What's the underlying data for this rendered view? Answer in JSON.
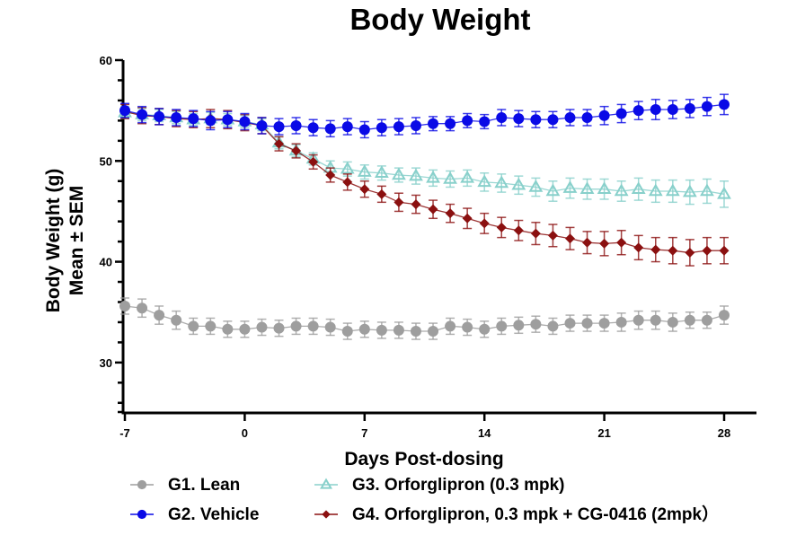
{
  "chart_data": {
    "type": "line",
    "title": "Body Weight",
    "xlabel": "Days Post-dosing",
    "ylabel": [
      "Body Weight  (g)",
      "Mean ± SEM"
    ],
    "xlim": [
      -7,
      30
    ],
    "ylim": [
      25,
      60
    ],
    "xticks": [
      -7,
      0,
      7,
      14,
      21,
      28
    ],
    "xtick_labels": [
      "-7",
      "0",
      "7",
      "14",
      "21",
      "28"
    ],
    "yticks": [
      30,
      40,
      50,
      60
    ],
    "ytick_labels": [
      "30",
      "40",
      "50",
      "60"
    ],
    "y_minor_step": 2,
    "grid": false,
    "legend_position": "bottom",
    "x": [
      -7,
      -6,
      -5,
      -4,
      -3,
      -2,
      -1,
      0,
      1,
      2,
      3,
      4,
      5,
      6,
      7,
      8,
      9,
      10,
      11,
      12,
      13,
      14,
      15,
      16,
      17,
      18,
      19,
      20,
      21,
      22,
      23,
      24,
      25,
      26,
      27,
      28
    ],
    "series": [
      {
        "name": "G1. Lean",
        "color": "#9e9e9e",
        "marker": "circle",
        "values": [
          35.6,
          35.4,
          34.7,
          34.2,
          33.6,
          33.6,
          33.3,
          33.3,
          33.5,
          33.4,
          33.6,
          33.6,
          33.5,
          33.1,
          33.3,
          33.2,
          33.2,
          33.1,
          33.1,
          33.6,
          33.5,
          33.3,
          33.6,
          33.7,
          33.8,
          33.6,
          33.9,
          33.9,
          33.9,
          34.0,
          34.2,
          34.2,
          34.0,
          34.2,
          34.2,
          34.7
        ],
        "sem": [
          0.8,
          0.9,
          0.9,
          0.9,
          0.8,
          0.8,
          0.8,
          0.8,
          0.8,
          0.8,
          0.8,
          0.8,
          0.8,
          0.8,
          0.8,
          0.8,
          0.8,
          0.8,
          0.8,
          0.8,
          0.8,
          0.8,
          0.8,
          0.8,
          0.8,
          0.8,
          0.8,
          0.8,
          0.8,
          0.9,
          0.9,
          0.9,
          0.9,
          0.8,
          0.8,
          0.9
        ]
      },
      {
        "name": "G2. Vehicle",
        "color": "#0a0ae6",
        "marker": "circle",
        "values": [
          55.0,
          54.6,
          54.4,
          54.3,
          54.2,
          54.0,
          54.1,
          53.9,
          53.5,
          53.4,
          53.5,
          53.3,
          53.2,
          53.4,
          53.1,
          53.3,
          53.4,
          53.5,
          53.7,
          53.7,
          54.0,
          53.9,
          54.3,
          54.2,
          54.1,
          54.1,
          54.3,
          54.3,
          54.5,
          54.7,
          55.0,
          55.1,
          55.1,
          55.2,
          55.4,
          55.6
        ],
        "sem": [
          0.7,
          0.8,
          0.8,
          0.8,
          0.8,
          0.9,
          0.8,
          0.8,
          0.8,
          0.8,
          0.8,
          0.8,
          0.8,
          0.8,
          0.8,
          0.8,
          0.8,
          0.8,
          0.7,
          0.7,
          0.7,
          0.7,
          0.8,
          0.8,
          0.8,
          0.8,
          0.8,
          0.8,
          0.9,
          0.9,
          0.9,
          1.0,
          0.9,
          0.9,
          0.9,
          1.0
        ]
      },
      {
        "name": "G3. Orforglipron (0.3 mpk)",
        "color": "#88d0cb",
        "marker": "triangle-open",
        "values": [
          54.8,
          54.6,
          54.5,
          54.3,
          54.1,
          54.2,
          54.1,
          53.9,
          53.6,
          51.8,
          51.0,
          50.2,
          49.3,
          49.2,
          48.9,
          48.8,
          48.6,
          48.5,
          48.3,
          48.2,
          48.3,
          47.9,
          47.8,
          47.6,
          47.4,
          47.0,
          47.3,
          47.2,
          47.2,
          47.0,
          47.2,
          47.0,
          47.0,
          46.9,
          47.0,
          46.7
        ],
        "sem": [
          0.6,
          0.6,
          0.6,
          0.6,
          0.6,
          0.6,
          0.6,
          0.6,
          0.6,
          0.6,
          0.6,
          0.6,
          0.7,
          0.7,
          0.7,
          0.7,
          0.7,
          0.8,
          0.8,
          0.8,
          0.8,
          0.9,
          0.9,
          0.9,
          0.9,
          1.0,
          1.0,
          1.0,
          1.0,
          1.0,
          1.1,
          1.1,
          1.1,
          1.2,
          1.2,
          1.3
        ]
      },
      {
        "name": "G4. Orforglipron, 0.3 mpk + CG-0416 (2mpk)",
        "color": "#8b1010",
        "marker": "diamond",
        "values": [
          54.9,
          54.5,
          54.4,
          54.2,
          54.1,
          54.2,
          54.1,
          53.8,
          53.5,
          51.7,
          51.0,
          49.9,
          48.6,
          47.9,
          47.2,
          46.7,
          45.9,
          45.7,
          45.2,
          44.8,
          44.3,
          43.8,
          43.4,
          43.1,
          42.8,
          42.6,
          42.3,
          41.9,
          41.8,
          41.9,
          41.4,
          41.2,
          41.1,
          40.9,
          41.1,
          41.1
        ],
        "sem": [
          0.7,
          0.8,
          0.8,
          0.8,
          0.8,
          0.9,
          0.9,
          0.8,
          0.8,
          0.7,
          0.7,
          0.7,
          0.7,
          0.8,
          0.8,
          0.8,
          0.9,
          0.9,
          0.9,
          0.9,
          1.0,
          1.0,
          1.0,
          1.0,
          1.1,
          1.1,
          1.1,
          1.1,
          1.2,
          1.2,
          1.2,
          1.2,
          1.3,
          1.3,
          1.3,
          1.3
        ]
      }
    ],
    "legend": [
      {
        "label": "G1. Lean"
      },
      {
        "label": "G2. Vehicle"
      },
      {
        "label": "G3. Orforglipron (0.3 mpk)"
      },
      {
        "label": "G4. Orforglipron, 0.3 mpk + CG-0416 (2mpk）"
      }
    ]
  }
}
